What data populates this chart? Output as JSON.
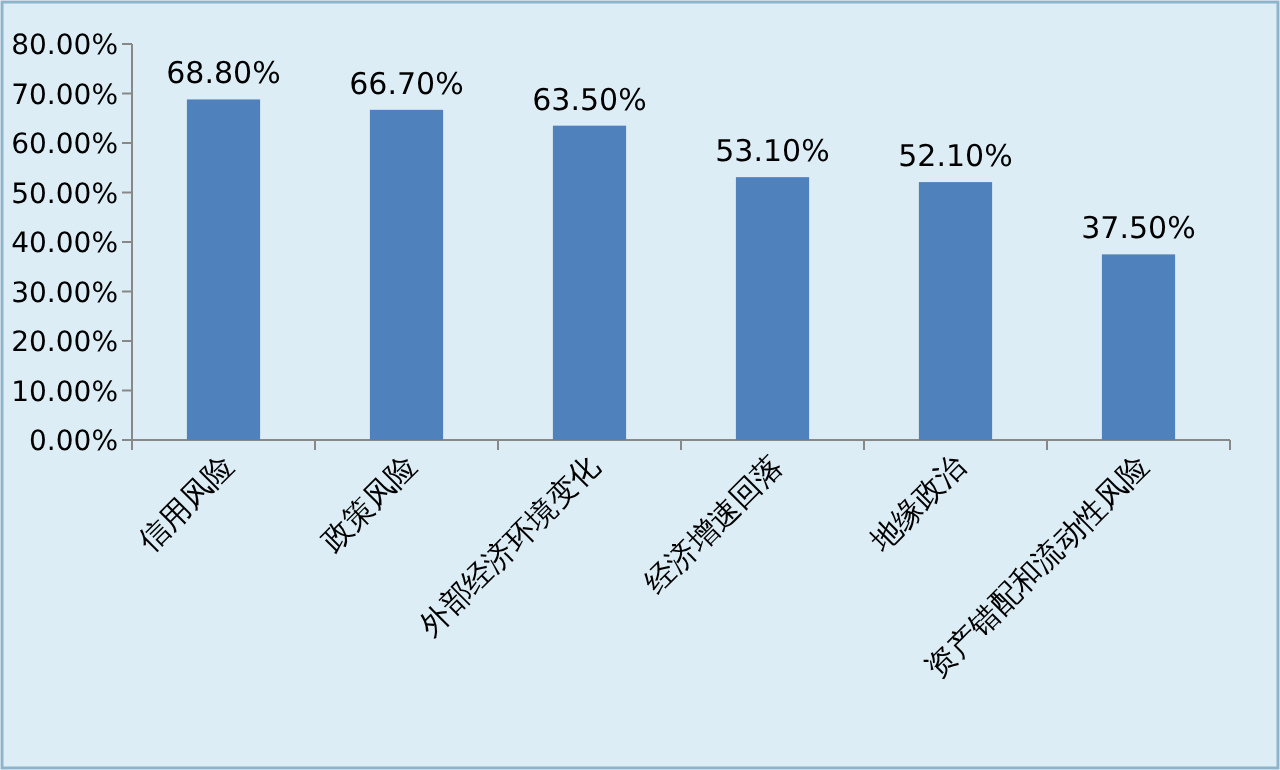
{
  "chart_data": {
    "type": "bar",
    "categories": [
      "信用风险",
      "政策风险",
      "外部经济环境变化",
      "经济增速回落",
      "地缘政治",
      "资产错配和流动性风险"
    ],
    "values": [
      68.8,
      66.7,
      63.5,
      53.1,
      52.1,
      37.5
    ],
    "value_labels": [
      "68.80%",
      "66.70%",
      "63.50%",
      "53.10%",
      "52.10%",
      "37.50%"
    ],
    "color": "#4f81bd",
    "ylim": [
      0,
      80
    ],
    "yticks": [
      {
        "value": 0,
        "label": "0.00%"
      },
      {
        "value": 10,
        "label": "10.00%"
      },
      {
        "value": 20,
        "label": "20.00%"
      },
      {
        "value": 30,
        "label": "30.00%"
      },
      {
        "value": 40,
        "label": "40.00%"
      },
      {
        "value": 50,
        "label": "50.00%"
      },
      {
        "value": 60,
        "label": "60.00%"
      },
      {
        "value": 70,
        "label": "70.00%"
      },
      {
        "value": 80,
        "label": "80.00%"
      }
    ],
    "grid": false
  }
}
